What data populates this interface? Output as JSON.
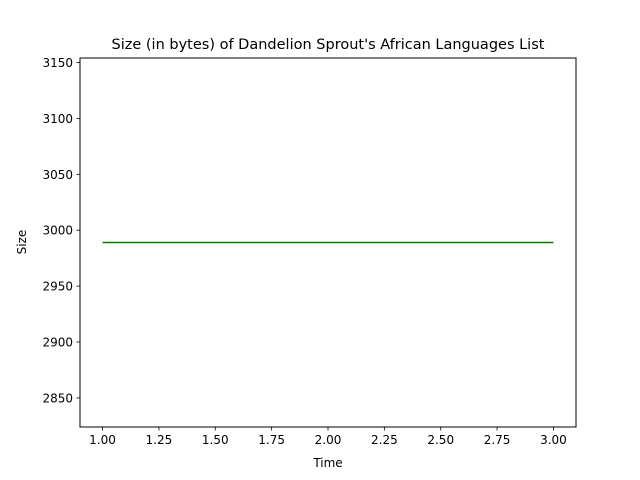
{
  "chart_data": {
    "type": "line",
    "title": "Size (in bytes) of Dandelion Sprout's African Languages List",
    "xlabel": "Time",
    "ylabel": "Size",
    "x": [
      1,
      2,
      3
    ],
    "series": [
      {
        "values": [
          2989,
          2989,
          2989
        ],
        "color": "#008000"
      }
    ],
    "xlim": [
      0.9,
      3.1
    ],
    "ylim": [
      2824,
      3154
    ],
    "xticks": [
      1.0,
      1.25,
      1.5,
      1.75,
      2.0,
      2.25,
      2.5,
      2.75,
      3.0
    ],
    "xtick_labels": [
      "1.00",
      "1.25",
      "1.50",
      "1.75",
      "2.00",
      "2.25",
      "2.50",
      "2.75",
      "3.00"
    ],
    "yticks": [
      2850,
      2900,
      2950,
      3000,
      3050,
      3100,
      3150
    ],
    "ytick_labels": [
      "2850",
      "2900",
      "2950",
      "3000",
      "3050",
      "3100",
      "3150"
    ],
    "grid": false,
    "legend": false
  }
}
